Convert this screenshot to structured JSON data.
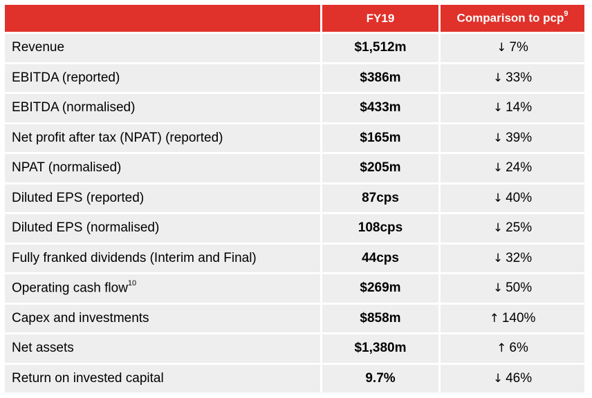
{
  "header": {
    "metric": "",
    "fy19": "FY19",
    "comparison": "Comparison to pcp",
    "comparison_sup": "9"
  },
  "rows": [
    {
      "metric": "Revenue",
      "sup": "",
      "value": "$1,512m",
      "direction_icon": "arrow-down-icon",
      "arrow": "↓",
      "change": "7%"
    },
    {
      "metric": "EBITDA (reported)",
      "sup": "",
      "value": "$386m",
      "direction_icon": "arrow-down-icon",
      "arrow": "↓",
      "change": "33%"
    },
    {
      "metric": "EBITDA (normalised)",
      "sup": "",
      "value": "$433m",
      "direction_icon": "arrow-down-icon",
      "arrow": "↓",
      "change": "14%"
    },
    {
      "metric": "Net profit after tax (NPAT) (reported)",
      "sup": "",
      "value": "$165m",
      "direction_icon": "arrow-down-icon",
      "arrow": "↓",
      "change": "39%"
    },
    {
      "metric": "NPAT (normalised)",
      "sup": "",
      "value": "$205m",
      "direction_icon": "arrow-down-icon",
      "arrow": "↓",
      "change": "24%"
    },
    {
      "metric": "Diluted EPS (reported)",
      "sup": "",
      "value": "87cps",
      "direction_icon": "arrow-down-icon",
      "arrow": "↓",
      "change": "40%"
    },
    {
      "metric": "Diluted EPS (normalised)",
      "sup": "",
      "value": "108cps",
      "direction_icon": "arrow-down-icon",
      "arrow": "↓",
      "change": "25%"
    },
    {
      "metric": "Fully franked dividends (Interim and Final)",
      "sup": "",
      "value": "44cps",
      "direction_icon": "arrow-down-icon",
      "arrow": "↓",
      "change": "32%"
    },
    {
      "metric": "Operating cash flow",
      "sup": "10",
      "value": "$269m",
      "direction_icon": "arrow-down-icon",
      "arrow": "↓",
      "change": "50%"
    },
    {
      "metric": "Capex and investments",
      "sup": "",
      "value": "$858m",
      "direction_icon": "arrow-up-icon",
      "arrow": "↑",
      "change": "140%"
    },
    {
      "metric": "Net assets",
      "sup": "",
      "value": "$1,380m",
      "direction_icon": "arrow-up-icon",
      "arrow": "↑",
      "change": "6%"
    },
    {
      "metric": "Return on invested capital",
      "sup": "",
      "value": "9.7%",
      "direction_icon": "arrow-down-icon",
      "arrow": "↓",
      "change": "46%"
    }
  ],
  "colors": {
    "header_bg": "#e0312a",
    "row_bg": "#eeeeee"
  }
}
